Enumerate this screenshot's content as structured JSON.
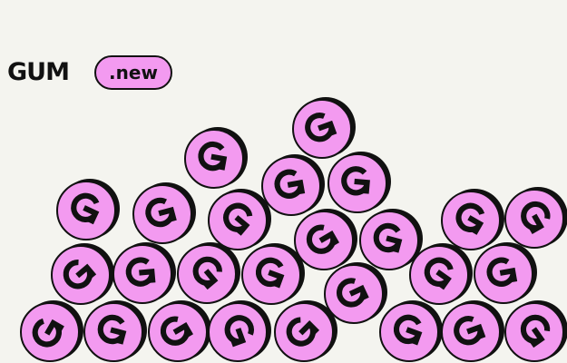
{
  "brand": {
    "name": "GUM",
    "badge": ".new"
  },
  "coin": {
    "icon": "gum-g-coin-icon",
    "fill": "#f39af0",
    "outline": "#111111"
  },
  "colors": {
    "background": "#f4f4ef",
    "text": "#111111",
    "accent": "#f39af0"
  }
}
